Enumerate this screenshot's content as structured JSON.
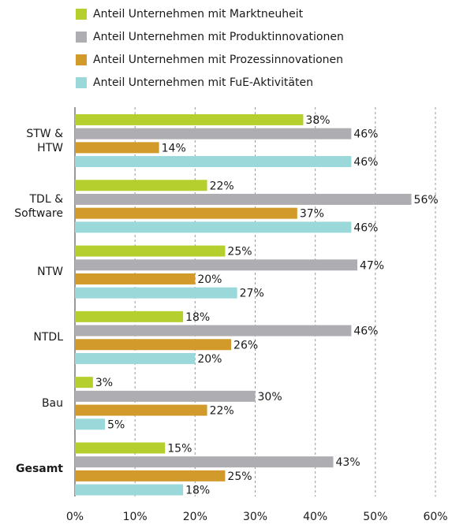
{
  "chart_data": {
    "type": "hbar",
    "categories": [
      "STW & HTW",
      "TDL & Software",
      "NTW",
      "NTDL",
      "Bau",
      "Gesamt"
    ],
    "series": [
      {
        "name": "Anteil Unternehmen mit Marktneuheit",
        "color": "#b5cf2f",
        "values": [
          38,
          22,
          25,
          18,
          3,
          15
        ],
        "value_labels": [
          "38%",
          "22%",
          "25%",
          "18%",
          "3%",
          "15%"
        ]
      },
      {
        "name": "Anteil Unternehmen mit Produktinnovationen",
        "color": "#aeaeb2",
        "values": [
          46,
          56,
          47,
          46,
          30,
          43
        ],
        "value_labels": [
          "46%",
          "56%",
          "47%",
          "46%",
          "30%",
          "43%"
        ]
      },
      {
        "name": "Anteil Unternehmen mit Prozessinnovationen",
        "color": "#d19a2a",
        "values": [
          14,
          37,
          20,
          26,
          22,
          25
        ],
        "value_labels": [
          "14%",
          "37%",
          "20%",
          "26%",
          "22%",
          "25%"
        ]
      },
      {
        "name": "Anteil Unternehmen mit FuE-Aktivitäten",
        "color": "#9ad8da",
        "values": [
          46,
          46,
          27,
          20,
          5,
          18
        ],
        "value_labels": [
          "46%",
          "46%",
          "27%",
          "20%",
          "5%",
          "18%"
        ]
      }
    ],
    "xlim": [
      0,
      60
    ],
    "xticks": [
      {
        "value": 0,
        "label": "0%"
      },
      {
        "value": 10,
        "label": "10%"
      },
      {
        "value": 20,
        "label": "20%"
      },
      {
        "value": 30,
        "label": "30%"
      },
      {
        "value": 40,
        "label": "40%"
      },
      {
        "value": 50,
        "label": "50%"
      },
      {
        "value": 60,
        "label": "60%"
      }
    ],
    "grid": true
  }
}
